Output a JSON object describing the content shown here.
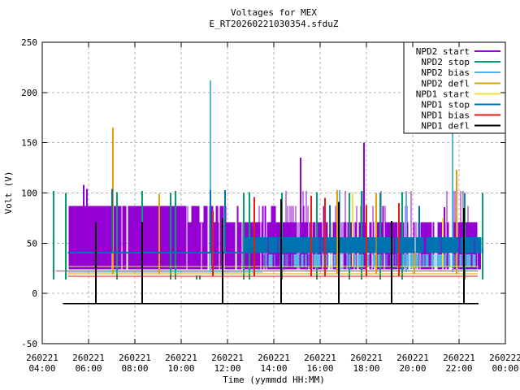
{
  "chart_data": {
    "type": "line",
    "title": "Voltages for MEX",
    "subtitle": "E_RT20260221030354.sfduZ",
    "xlabel": "Time (yymmdd HH:MM)",
    "ylabel": "Volt (V)",
    "ylim": [
      -50,
      250
    ],
    "xlim_hours": [
      4,
      24
    ],
    "y_ticks": [
      250,
      200,
      150,
      100,
      50,
      0,
      -50
    ],
    "x_ticks": [
      {
        "date": "260221",
        "time": "04:00",
        "hour": 4
      },
      {
        "date": "260221",
        "time": "06:00",
        "hour": 6
      },
      {
        "date": "260221",
        "time": "08:00",
        "hour": 8
      },
      {
        "date": "260221",
        "time": "10:00",
        "hour": 10
      },
      {
        "date": "260221",
        "time": "12:00",
        "hour": 12
      },
      {
        "date": "260221",
        "time": "14:00",
        "hour": 14
      },
      {
        "date": "260221",
        "time": "16:00",
        "hour": 16
      },
      {
        "date": "260221",
        "time": "18:00",
        "hour": 18
      },
      {
        "date": "260221",
        "time": "20:00",
        "hour": 20
      },
      {
        "date": "260221",
        "time": "22:00",
        "hour": 22
      },
      {
        "date": "260222",
        "time": "00:00",
        "hour": 24
      }
    ],
    "grid": true,
    "grid_color": "#b3b3b3",
    "axis_color": "#000000",
    "legend": {
      "position": "top-right",
      "boxed": true,
      "bg": "#ffffff"
    },
    "series": [
      {
        "name": "NPD2 start",
        "color": "#9400d3",
        "spike_w": 2,
        "bands": [
          {
            "t0": 5.15,
            "t1": 10.3,
            "lo": 24,
            "hi": 87,
            "gap_p": 0.04
          },
          {
            "t0": 10.3,
            "t1": 14.3,
            "lo": 24,
            "hi": 87,
            "alt_hi": 71,
            "alt_toggle_p": 0.14,
            "gap_p": 0.1
          },
          {
            "t0": 14.3,
            "t1": 22.8,
            "lo": 24,
            "hi": 71,
            "gap_p": 0.18,
            "over": [
              {
                "p": 0.09,
                "hi": 87
              },
              {
                "p": 0.05,
                "hi": 102
              }
            ]
          }
        ],
        "spike_base": 24,
        "spikes": [
          [
            5.79,
            108
          ],
          [
            5.93,
            104
          ],
          [
            11.26,
            135
          ],
          [
            15.16,
            135
          ],
          [
            17.89,
            150
          ],
          [
            21.37,
            86
          ],
          [
            22.85,
            55
          ],
          [
            22.9,
            50
          ]
        ]
      },
      {
        "name": "NPD2 stop",
        "color": "#009e73",
        "spike_w": 2,
        "hlines": [
          {
            "t0": 4.6,
            "t1": 22.8,
            "v": 22.5
          }
        ],
        "spike_base": 14,
        "spikes": [
          [
            4.49,
            102
          ],
          [
            5.02,
            100
          ],
          [
            7.23,
            101
          ],
          [
            8.32,
            102
          ],
          [
            9.54,
            100
          ],
          [
            9.75,
            102
          ],
          [
            10.66,
            18
          ],
          [
            10.8,
            18
          ],
          [
            12.7,
            100
          ],
          [
            12.95,
            101
          ],
          [
            14.35,
            100
          ],
          [
            15.86,
            101
          ],
          [
            17.26,
            100
          ],
          [
            17.79,
            102
          ],
          [
            18.6,
            100
          ],
          [
            19.54,
            101
          ],
          [
            22.25,
            100
          ],
          [
            23.0,
            100
          ]
        ]
      },
      {
        "name": "NPD2 bias",
        "color": "#56b4e9",
        "spike_w": 2,
        "hlines": [
          {
            "t0": 5.1,
            "t1": 13.5,
            "v": 21
          }
        ],
        "bands": [
          {
            "t0": 13.5,
            "t1": 22.8,
            "lo": 26,
            "hi": 39,
            "gap_p": 0.38
          }
        ],
        "spike_base": 21,
        "spikes": [
          [
            11.26,
            212
          ],
          [
            16.84,
            103
          ],
          [
            19.72,
            100
          ],
          [
            21.72,
            164
          ]
        ]
      },
      {
        "name": "NPD2 defl",
        "color": "#e69f00",
        "spike_w": 2,
        "hlines": [
          {
            "t0": 5.1,
            "t1": 22.8,
            "v": 19.4
          }
        ],
        "spike_base": 19.4,
        "spikes": [
          [
            7.05,
            165
          ],
          [
            9.05,
            99
          ],
          [
            16.74,
            103
          ],
          [
            18.42,
            100
          ],
          [
            20.07,
            42
          ],
          [
            21.89,
            123
          ]
        ]
      },
      {
        "name": "NPD1 start",
        "color": "#f0e442",
        "spike_w": 2,
        "hlines": [
          {
            "t0": 5.1,
            "t1": 22.85,
            "v": 27
          }
        ],
        "spike_base": 27,
        "spikes": [
          [
            15.6,
            40
          ],
          [
            17.4,
            100
          ],
          [
            21.3,
            75
          ]
        ]
      },
      {
        "name": "NPD1 stop",
        "color": "#0072b2",
        "spike_w": 2,
        "hlines": [
          {
            "t0": 5.1,
            "t1": 12.7,
            "v": 40.5,
            "w": 2
          }
        ],
        "bands": [
          {
            "t0": 12.7,
            "t1": 22.95,
            "lo": 40,
            "hi": 56,
            "gap_p": 0.06
          }
        ],
        "spike_base": 40,
        "spikes": [
          [
            7.0,
            104
          ],
          [
            11.26,
            103
          ],
          [
            11.89,
            103
          ],
          [
            16.42,
            88
          ],
          [
            20.28,
            87
          ],
          [
            23.02,
            45
          ]
        ]
      },
      {
        "name": "NPD1 bias",
        "color": "#e51e10",
        "spike_w": 2,
        "hlines": [
          {
            "t0": 5.1,
            "t1": 22.8,
            "v": 17.2
          }
        ],
        "spike_base": 17.2,
        "spikes": [
          [
            11.37,
            82
          ],
          [
            13.16,
            96
          ],
          [
            15.6,
            97
          ],
          [
            16.2,
            95
          ],
          [
            18.0,
            88
          ],
          [
            19.4,
            90
          ]
        ]
      },
      {
        "name": "NPD1 defl",
        "color": "#000000",
        "spike_w": 2,
        "hlines": [
          {
            "t0": 4.9,
            "t1": 22.85,
            "v": -10,
            "w": 1.5
          }
        ],
        "spike_base": -10,
        "spikes": [
          [
            6.3,
            71
          ],
          [
            8.3,
            71
          ],
          [
            11.8,
            75
          ],
          [
            14.3,
            94
          ],
          [
            16.8,
            91
          ],
          [
            19.1,
            72
          ],
          [
            22.2,
            85
          ]
        ]
      }
    ]
  }
}
